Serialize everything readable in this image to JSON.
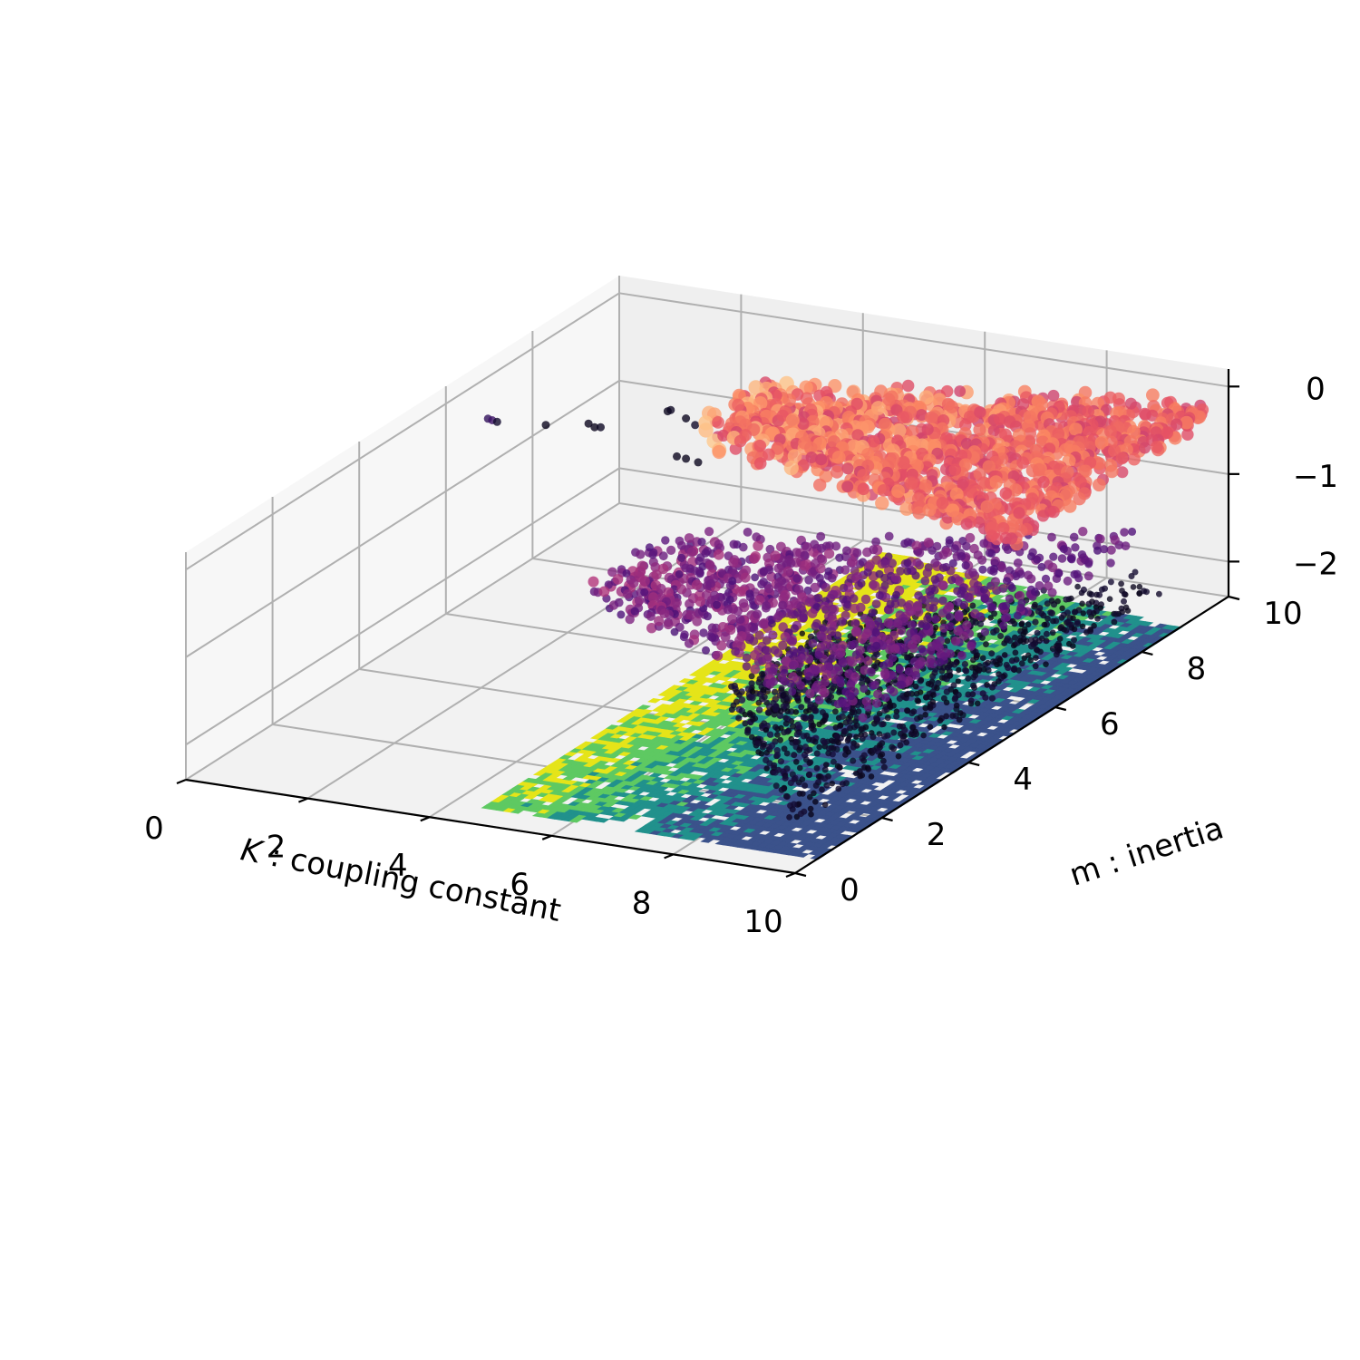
{
  "chart_data": {
    "type": "scatter3d",
    "title": "",
    "xlabel": "K : coupling constant",
    "xlabel_var": "K",
    "xlabel_rest": " : coupling constant",
    "ylabel": "m : inertia",
    "zlabel": "",
    "xlim": [
      0,
      10
    ],
    "ylim": [
      0,
      10
    ],
    "zlim": [
      -2.4,
      0.2
    ],
    "xticks": [
      0,
      2,
      4,
      6,
      8,
      10
    ],
    "yticks": [
      0,
      2,
      4,
      6,
      8,
      10
    ],
    "zticks": [
      0,
      -1,
      -2
    ],
    "xtick_labels": [
      "0",
      "2",
      "4",
      "6",
      "8",
      "10"
    ],
    "ytick_labels": [
      "0",
      "2",
      "4",
      "6",
      "8",
      "10"
    ],
    "ztick_labels": [
      "0",
      "−1",
      "−2"
    ],
    "grid": true,
    "colormaps": {
      "scatter": "magma",
      "floor_contour": "viridis"
    },
    "scatter_clusters": [
      {
        "name": "upper-left fan",
        "k": [
          3.5,
          10.0
        ],
        "m": [
          5.0,
          10.0
        ],
        "z": [
          -0.4,
          0.0
        ],
        "color_value": [
          0.45,
          0.9
        ],
        "count": 1300
      },
      {
        "name": "middle band",
        "k": [
          3.8,
          10.0
        ],
        "m": [
          1.5,
          8.0
        ],
        "z": [
          -1.3,
          -0.9
        ],
        "color_value": [
          0.15,
          0.5
        ],
        "count": 1100
      },
      {
        "name": "lower band",
        "k": [
          6.5,
          10.0
        ],
        "m": [
          0.0,
          9.0
        ],
        "z": [
          -2.0,
          -1.6
        ],
        "color_value": [
          0.0,
          0.15
        ],
        "count": 1100
      }
    ],
    "outlier_points": [
      {
        "k": 0.05,
        "m": 6.9,
        "z": -0.45,
        "c": 0.18
      },
      {
        "k": 0.12,
        "m": 6.9,
        "z": -0.46,
        "c": 0.2
      },
      {
        "k": 0.2,
        "m": 6.9,
        "z": -0.47,
        "c": 0.08
      },
      {
        "k": 1.0,
        "m": 6.9,
        "z": -0.42,
        "c": 0.05
      },
      {
        "k": 1.7,
        "m": 6.9,
        "z": -0.33,
        "c": 0.05
      },
      {
        "k": 1.8,
        "m": 6.9,
        "z": -0.36,
        "c": 0.05
      },
      {
        "k": 1.9,
        "m": 6.9,
        "z": -0.35,
        "c": 0.06
      },
      {
        "k": 3.0,
        "m": 6.9,
        "z": -0.05,
        "c": 0.05
      },
      {
        "k": 3.05,
        "m": 6.9,
        "z": -0.03,
        "c": 0.06
      },
      {
        "k": 3.3,
        "m": 6.9,
        "z": -0.1,
        "c": 0.05
      },
      {
        "k": 3.45,
        "m": 6.9,
        "z": -0.16,
        "c": 0.07
      },
      {
        "k": 3.15,
        "m": 6.9,
        "z": -0.55,
        "c": 0.05
      },
      {
        "k": 3.3,
        "m": 6.9,
        "z": -0.56,
        "c": 0.05
      },
      {
        "k": 3.5,
        "m": 6.9,
        "z": -0.58,
        "c": 0.05
      }
    ],
    "floor_contour": {
      "z": -2.4,
      "levels": [
        "high",
        "mid-high",
        "mid",
        "low"
      ],
      "colors": [
        "#e5e419",
        "#5ec962",
        "#21918c",
        "#3b528b"
      ],
      "region_k": [
        4.5,
        10.0
      ],
      "region_m": [
        0.5,
        10.0
      ]
    }
  }
}
